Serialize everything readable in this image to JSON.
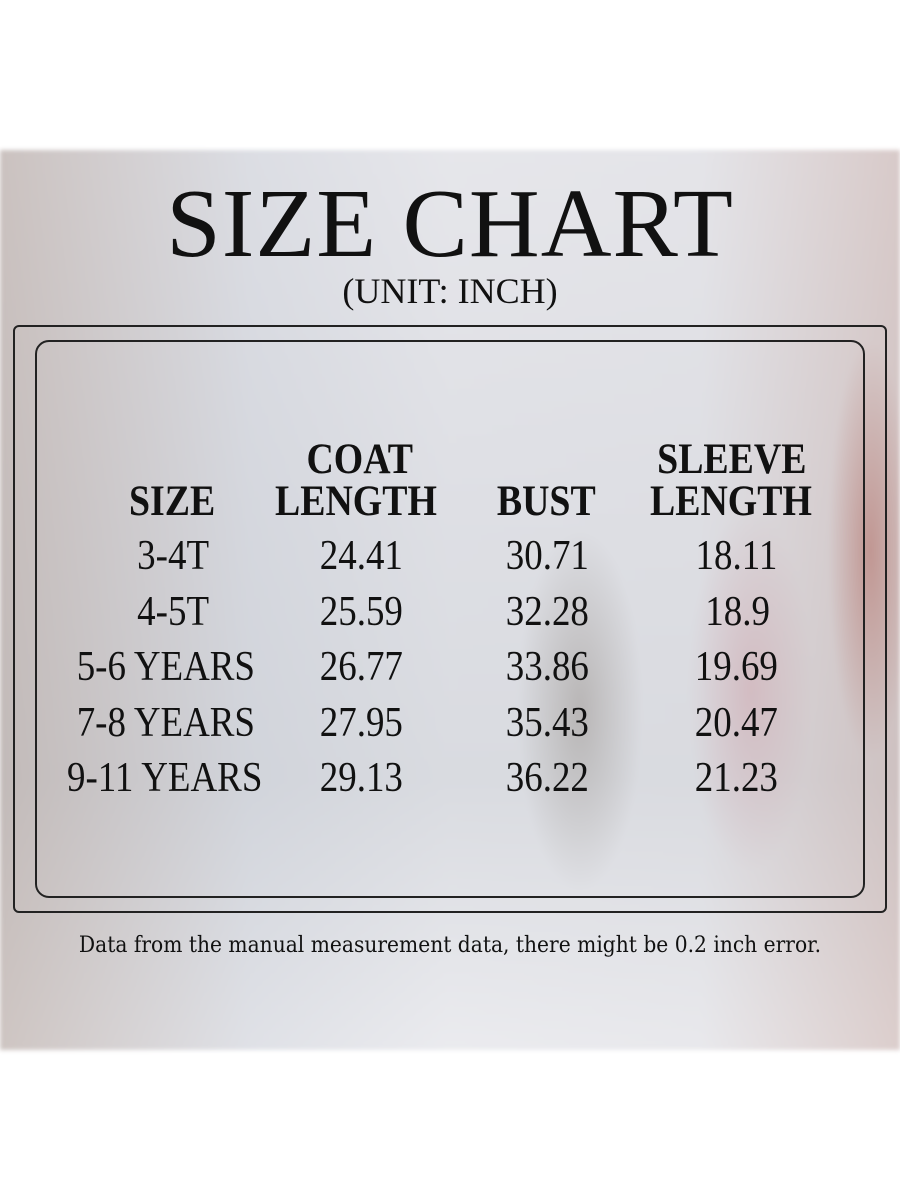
{
  "title": "SIZE CHART",
  "unit": "(UNIT: INCH)",
  "table": {
    "headers": [
      {
        "line1": "",
        "line2": "SIZE"
      },
      {
        "line1": "COAT",
        "line2": "LENGTH"
      },
      {
        "line1": "",
        "line2": "BUST"
      },
      {
        "line1": "SLEEVE",
        "line2": "LENGTH"
      }
    ],
    "rows": [
      [
        "3-4T",
        "24.41",
        "30.71",
        "18.11"
      ],
      [
        "4-5T",
        "25.59",
        "32.28",
        "18.9"
      ],
      [
        "5-6 YEARS",
        "26.77",
        "33.86",
        "19.69"
      ],
      [
        "7-8 YEARS",
        "27.95",
        "35.43",
        "20.47"
      ],
      [
        "9-11 YEARS",
        "29.13",
        "36.22",
        "21.23"
      ]
    ]
  },
  "note": "Data from the manual measurement data, there might be 0.2 inch error."
}
